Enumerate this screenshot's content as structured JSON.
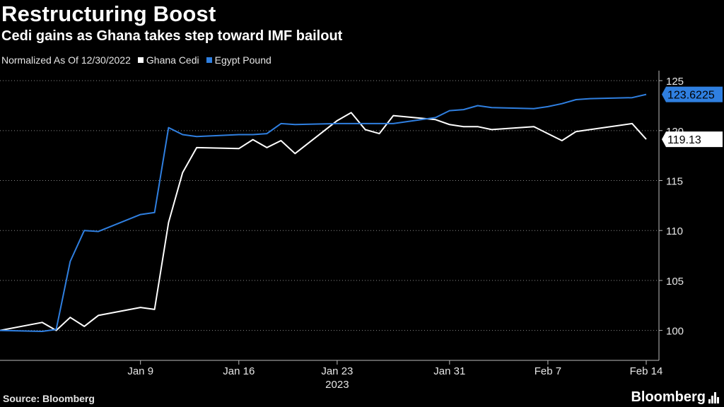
{
  "header": {
    "title": "Restructuring Boost",
    "subtitle": "Cedi gains as Ghana takes step toward IMF bailout"
  },
  "legend": {
    "note": "Normalized As Of 12/30/2022",
    "items": [
      {
        "label": "Ghana Cedi",
        "color": "#ffffff"
      },
      {
        "label": "Egypt Pound",
        "color": "#2f7fe0"
      }
    ]
  },
  "footer": {
    "source": "Source: Bloomberg",
    "logo": "Bloomberg"
  },
  "chart_data": {
    "type": "line",
    "x": [
      "2022-12-30",
      "2023-01-02",
      "2023-01-03",
      "2023-01-04",
      "2023-01-05",
      "2023-01-06",
      "2023-01-09",
      "2023-01-10",
      "2023-01-11",
      "2023-01-12",
      "2023-01-13",
      "2023-01-16",
      "2023-01-17",
      "2023-01-18",
      "2023-01-19",
      "2023-01-20",
      "2023-01-23",
      "2023-01-24",
      "2023-01-25",
      "2023-01-26",
      "2023-01-27",
      "2023-01-30",
      "2023-01-31",
      "2023-02-01",
      "2023-02-02",
      "2023-02-03",
      "2023-02-06",
      "2023-02-07",
      "2023-02-08",
      "2023-02-09",
      "2023-02-10",
      "2023-02-13",
      "2023-02-14"
    ],
    "series": [
      {
        "name": "Ghana Cedi",
        "color": "#ffffff",
        "values": [
          100.0,
          100.8,
          100.0,
          101.3,
          100.4,
          101.5,
          102.3,
          102.1,
          110.8,
          115.8,
          118.3,
          118.2,
          119.1,
          118.3,
          119.0,
          117.7,
          121.0,
          121.8,
          120.1,
          119.7,
          121.5,
          121.1,
          120.6,
          120.4,
          120.4,
          120.1,
          120.4,
          119.7,
          119.0,
          119.9,
          120.1,
          120.7,
          119.13
        ]
      },
      {
        "name": "Egypt Pound",
        "color": "#2f7fe0",
        "values": [
          100.0,
          99.9,
          100.1,
          106.9,
          110.0,
          109.9,
          111.6,
          111.8,
          120.3,
          119.6,
          119.4,
          119.6,
          119.6,
          119.7,
          120.7,
          120.6,
          120.7,
          120.7,
          120.7,
          120.7,
          120.7,
          121.3,
          122.0,
          122.1,
          122.5,
          122.3,
          122.2,
          122.4,
          122.7,
          123.1,
          123.2,
          123.3,
          123.6225
        ]
      }
    ],
    "ylim": [
      97,
      126
    ],
    "yticks": [
      100,
      105,
      110,
      115,
      120,
      125
    ],
    "xticks": [
      {
        "label": "Jan 9",
        "date": "2023-01-09"
      },
      {
        "label": "Jan 16",
        "date": "2023-01-16"
      },
      {
        "label": "Jan 23",
        "date": "2023-01-23"
      },
      {
        "label": "Jan 31",
        "date": "2023-01-31"
      },
      {
        "label": "Feb 7",
        "date": "2023-02-07"
      },
      {
        "label": "Feb 14",
        "date": "2023-02-14"
      }
    ],
    "xlabel": "2023",
    "last_labels": [
      {
        "series": "Egypt Pound",
        "value": "123.6225",
        "bg": "#2f7fe0",
        "fg": "#000000"
      },
      {
        "series": "Ghana Cedi",
        "value": "119.13",
        "bg": "#ffffff",
        "fg": "#000000"
      }
    ],
    "grid": "horizontal-dotted"
  }
}
